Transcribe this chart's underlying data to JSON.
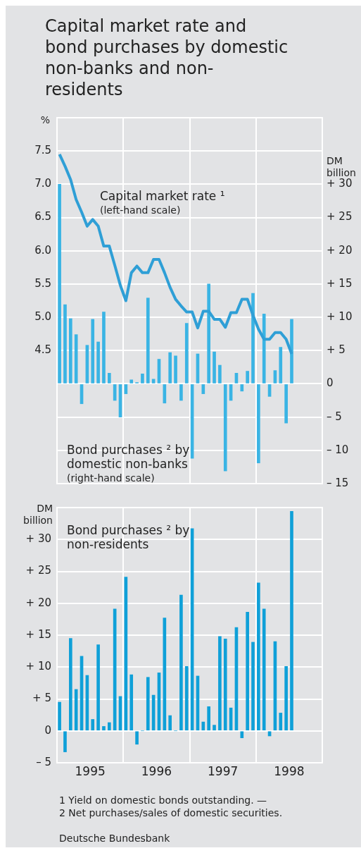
{
  "chart_data": [
    {
      "type": "bar",
      "title": "Capital market rate and bond purchases by domestic non-banks and non-residents",
      "ylabel": "%",
      "y2label": "DM billion",
      "x": [
        "1995-01-15",
        "1995-02-15",
        "1995-03-15",
        "1995-04-15",
        "1995-05-15",
        "1995-06-15",
        "1995-07-15",
        "1995-08-15",
        "1995-09-15",
        "1995-10-15",
        "1995-11-15",
        "1995-12-15",
        "1996-01-15",
        "1996-02-15",
        "1996-03-15",
        "1996-04-15",
        "1996-05-15",
        "1996-06-15",
        "1996-07-15",
        "1996-08-15",
        "1996-09-15",
        "1996-10-15",
        "1996-11-15",
        "1996-12-15",
        "1997-01-15",
        "1997-02-15",
        "1997-03-15",
        "1997-04-15",
        "1997-05-15",
        "1997-06-15",
        "1997-07-15",
        "1997-08-15",
        "1997-09-15",
        "1997-10-15",
        "1997-11-15",
        "1997-12-15",
        "1998-01-15",
        "1998-02-15",
        "1998-03-15",
        "1998-04-15",
        "1998-05-15",
        "1998-06-15",
        "1998-07-15"
      ],
      "xlim": [
        "1995-01",
        "1999-01"
      ],
      "xticks": [
        {
          "value": "1996-01",
          "label": null
        },
        {
          "value": "1997-01",
          "label": null
        },
        {
          "value": "1998-01",
          "label": null
        }
      ],
      "ylim": [
        2.5,
        8
      ],
      "yticks": [
        4.5,
        {
          "value": 5,
          "label": "5.0"
        },
        5.5,
        {
          "value": 6,
          "label": "6.0"
        },
        6.5,
        {
          "value": 7,
          "label": "7.0"
        },
        7.5,
        {
          "value": 8,
          "label": null
        }
      ],
      "y2lim": [
        -15,
        40
      ],
      "y2ticks": [
        {
          "value": -15,
          "label": "– 15"
        },
        {
          "value": -10,
          "label": "– 10"
        },
        {
          "value": -5,
          "label": "– 5"
        },
        0,
        {
          "value": 5,
          "label": "+ 5"
        },
        {
          "value": 10,
          "label": "+ 10"
        },
        {
          "value": 15,
          "label": "+ 15"
        },
        {
          "value": 20,
          "label": "+ 20"
        },
        {
          "value": 25,
          "label": "+ 25"
        },
        {
          "value": 30,
          "label": "+ 30"
        },
        {
          "value": 35,
          "label": null
        },
        {
          "value": 40,
          "label": null
        }
      ],
      "grid": true,
      "tick_labels": "y",
      "series": [
        {
          "name": "Bond purchases ² by domestic non-banks",
          "axis": "y2",
          "color": "#3ab4e4",
          "values": [
            30,
            11.9,
            9.8,
            7.4,
            -3.0,
            5.8,
            9.7,
            6.3,
            10.8,
            1.6,
            -2.5,
            -5.0,
            -1.5,
            0.6,
            0.2,
            1.5,
            12.9,
            0.7,
            3.7,
            -2.9,
            4.7,
            4.2,
            -2.5,
            9.1,
            -11.2,
            4.5,
            -1.5,
            15.0,
            4.8,
            2.8,
            -13.1,
            -2.5,
            1.6,
            -1.1,
            1.9,
            13.6,
            -11.9,
            10.5,
            -1.9,
            2.0,
            5.5,
            -5.9,
            9.7
          ]
        },
        {
          "name": "Capital market rate ¹",
          "type": "line",
          "color": "#2f9fd6",
          "values": [
            7.45,
            7.27,
            7.07,
            6.77,
            6.58,
            6.37,
            6.47,
            6.37,
            6.07,
            6.07,
            5.78,
            5.48,
            5.25,
            5.67,
            5.77,
            5.67,
            5.67,
            5.87,
            5.87,
            5.67,
            5.45,
            5.27,
            5.17,
            5.08,
            5.08,
            4.84,
            5.09,
            5.09,
            4.97,
            4.97,
            4.85,
            5.07,
            5.07,
            5.27,
            5.27,
            5.03,
            4.82,
            4.67,
            4.67,
            4.77,
            4.77,
            4.67,
            4.45
          ]
        }
      ],
      "annotations": [
        "(right-hand scale)",
        "(left-hand scale)"
      ]
    },
    {
      "type": "bar",
      "ylabel": "DM billion",
      "x": [
        "1995-01-15",
        "1995-02-15",
        "1995-03-15",
        "1995-04-15",
        "1995-05-15",
        "1995-06-15",
        "1995-07-15",
        "1995-08-15",
        "1995-09-15",
        "1995-10-15",
        "1995-11-15",
        "1995-12-15",
        "1996-01-15",
        "1996-02-15",
        "1996-03-15",
        "1996-04-15",
        "1996-05-15",
        "1996-06-15",
        "1996-07-15",
        "1996-08-15",
        "1996-09-15",
        "1996-10-15",
        "1996-11-15",
        "1996-12-15",
        "1997-01-15",
        "1997-02-15",
        "1997-03-15",
        "1997-04-15",
        "1997-05-15",
        "1997-06-15",
        "1997-07-15",
        "1997-08-15",
        "1997-09-15",
        "1997-10-15",
        "1997-11-15",
        "1997-12-15",
        "1998-01-15",
        "1998-02-15",
        "1998-03-15",
        "1998-04-15",
        "1998-05-15",
        "1998-06-15",
        "1998-07-15"
      ],
      "xlim": [
        "1995-01",
        "1999-01"
      ],
      "xticks": [
        {
          "value": "1995-07",
          "label": "1995"
        },
        {
          "value": "1996-01",
          "label": null
        },
        {
          "value": "1996-07",
          "label": "1996"
        },
        {
          "value": "1997-01",
          "label": null
        },
        {
          "value": "1997-07",
          "label": "1997"
        },
        {
          "value": "1998-01",
          "label": null
        },
        {
          "value": "1998-07",
          "label": "1998"
        }
      ],
      "ylim": [
        -5,
        35
      ],
      "yticks": [
        {
          "value": -5,
          "label": "– 5"
        },
        0,
        {
          "value": 5,
          "label": "+ 5"
        },
        {
          "value": 10,
          "label": "+ 10"
        },
        {
          "value": 15,
          "label": "+ 15"
        },
        {
          "value": 20,
          "label": "+ 20"
        },
        {
          "value": 25,
          "label": "+ 25"
        },
        {
          "value": 30,
          "label": "+ 30"
        },
        {
          "value": 35,
          "label": null
        }
      ],
      "grid": true,
      "series": [
        {
          "name": "Bond purchases ² by non-residents",
          "color": "#0fa0d8",
          "values": [
            4.5,
            -3.3,
            14.5,
            6.5,
            11.7,
            8.7,
            1.8,
            13.5,
            0.7,
            1.3,
            19.1,
            5.4,
            24.1,
            8.8,
            -2.1,
            0,
            8.4,
            5.6,
            9.1,
            17.7,
            2.4,
            0,
            21.3,
            10.1,
            31.7,
            8.6,
            1.4,
            3.8,
            0.9,
            14.8,
            14.4,
            3.6,
            16.2,
            -1.1,
            18.6,
            13.9,
            23.2,
            19.1,
            -0.8,
            14.0,
            2.8,
            10.1,
            34.4
          ]
        }
      ],
      "annotations": [
        "1 Yield on domestic bonds outstanding. —",
        "2 Net purchases/sales of domestic securities.",
        "Deutsche Bundesbank"
      ]
    }
  ]
}
